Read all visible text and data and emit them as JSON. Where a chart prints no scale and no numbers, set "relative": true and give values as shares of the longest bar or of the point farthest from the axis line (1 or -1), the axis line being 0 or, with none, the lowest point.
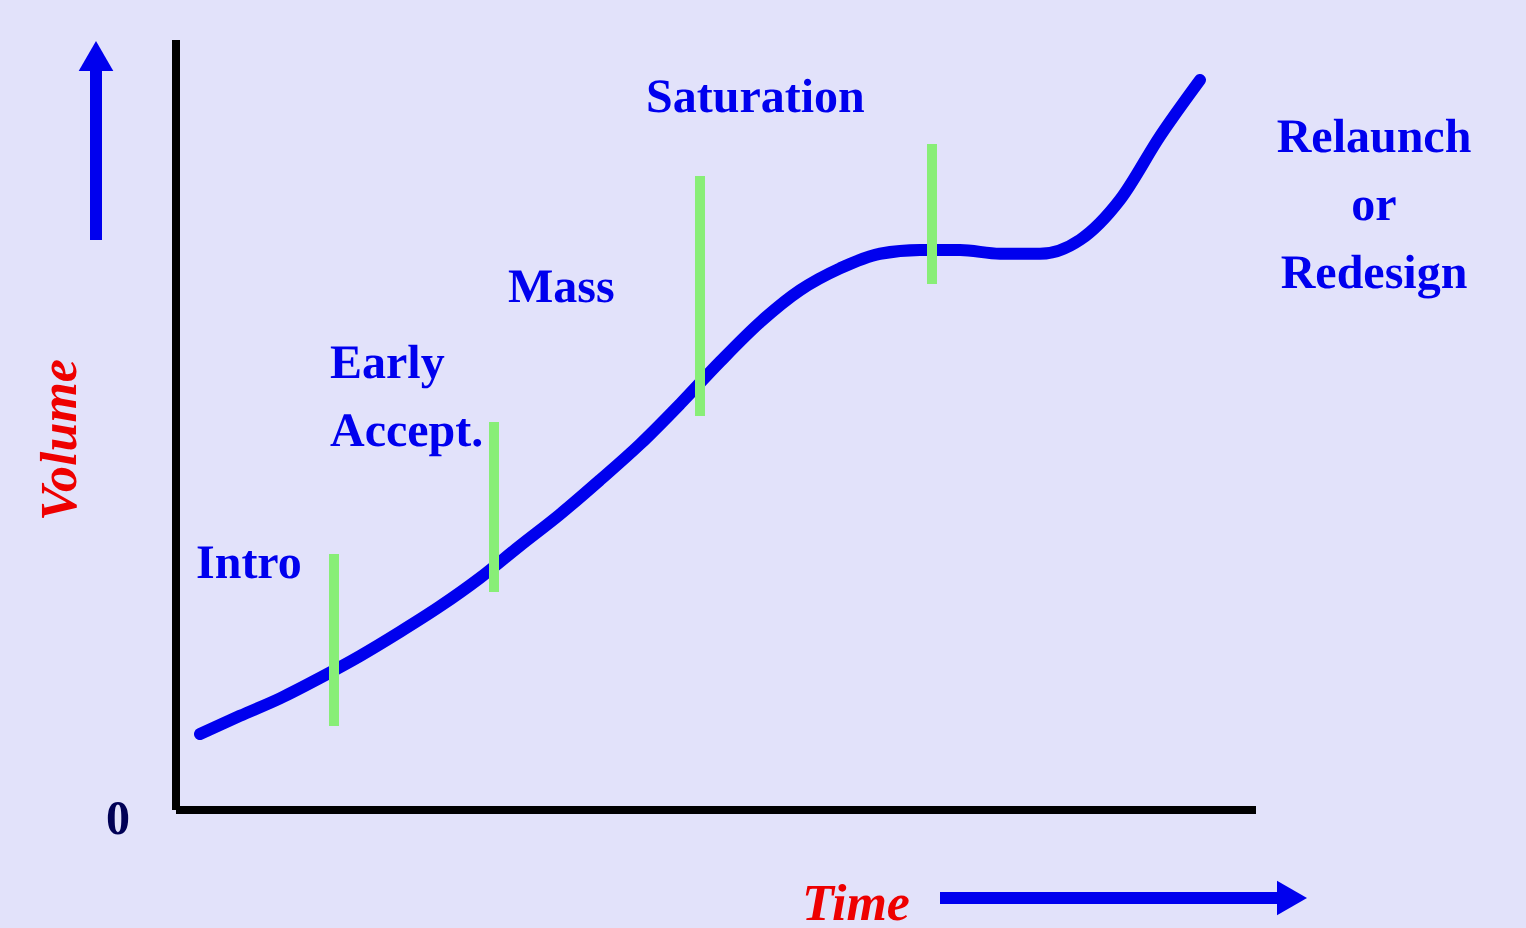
{
  "chart_data": {
    "type": "line",
    "relative": true,
    "xlabel": "Time",
    "ylabel": "Volume",
    "categories": [
      null,
      null,
      null,
      null,
      null,
      null,
      null,
      null,
      null,
      null,
      null,
      null,
      null,
      null,
      null,
      null,
      null,
      null,
      null,
      null,
      null,
      null,
      null,
      null,
      null,
      null
    ],
    "series": [
      {
        "color": "#0000ee",
        "values": [
          0.104,
          0.129,
          0.153,
          0.181,
          0.211,
          0.244,
          0.279,
          0.318,
          0.362,
          0.405,
          0.452,
          0.501,
          0.556,
          0.614,
          0.668,
          0.712,
          0.742,
          0.762,
          0.767,
          0.767,
          0.762,
          0.762,
          0.781,
          0.836,
          0.923,
          1
        ]
      }
    ],
    "annotations": [
      "0",
      "Intro",
      "Early\nAccept.",
      "Mass",
      "Saturation",
      "Relaunch\nor\nRedesign"
    ],
    "marker": "none"
  }
}
